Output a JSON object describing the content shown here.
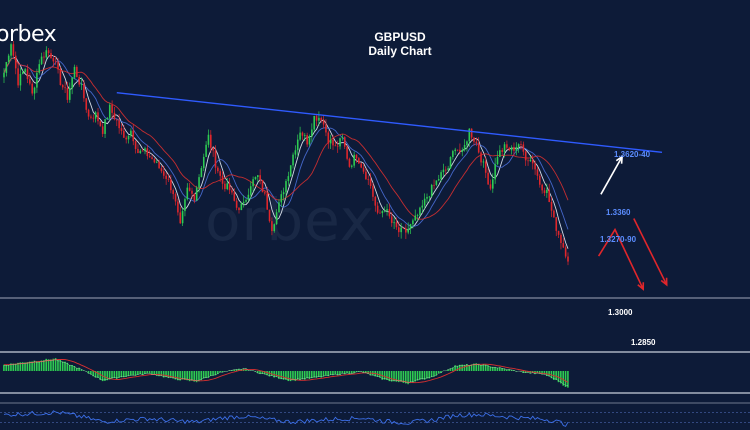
{
  "header": {
    "logo": "orbex",
    "watermark": "orbex",
    "title_line1": "GBPUSD",
    "title_line2": "Daily Chart"
  },
  "levels": {
    "resistance_top": "1.3620-40",
    "level_1": "1.3360",
    "level_2": "1.3270-90",
    "level_3": "1.3000",
    "level_4": "1.2850"
  },
  "colors": {
    "background": "#0d1b38",
    "bull_candle": "#2ecc52",
    "bear_candle": "#e0262b",
    "trendline": "#2f5bff",
    "ma_white": "#e8eef7",
    "ma_red": "#d83030",
    "ma_blue": "#4a6fd8",
    "arrow_red": "#e0262b",
    "arrow_white": "#ffffff",
    "level_label_blue": "#5b8dff"
  },
  "chart_data": {
    "type": "candlestick",
    "symbol": "GBPUSD",
    "timeframe": "Daily",
    "ylim": [
      1.27,
      1.405
    ],
    "anchors": [
      [
        0,
        1.372
      ],
      [
        3,
        1.386
      ],
      [
        6,
        1.368
      ],
      [
        9,
        1.374
      ],
      [
        12,
        1.362
      ],
      [
        15,
        1.377
      ],
      [
        18,
        1.382
      ],
      [
        21,
        1.379
      ],
      [
        24,
        1.368
      ],
      [
        27,
        1.361
      ],
      [
        30,
        1.374
      ],
      [
        33,
        1.365
      ],
      [
        36,
        1.352
      ],
      [
        39,
        1.353
      ],
      [
        42,
        1.346
      ],
      [
        45,
        1.356
      ],
      [
        48,
        1.35
      ],
      [
        51,
        1.342
      ],
      [
        54,
        1.346
      ],
      [
        57,
        1.336
      ],
      [
        60,
        1.336
      ],
      [
        63,
        1.333
      ],
      [
        66,
        1.329
      ],
      [
        69,
        1.325
      ],
      [
        72,
        1.318
      ],
      [
        75,
        1.302
      ],
      [
        78,
        1.319
      ],
      [
        81,
        1.316
      ],
      [
        84,
        1.33
      ],
      [
        87,
        1.343
      ],
      [
        90,
        1.331
      ],
      [
        93,
        1.322
      ],
      [
        96,
        1.319
      ],
      [
        99,
        1.311
      ],
      [
        102,
        1.312
      ],
      [
        105,
        1.322
      ],
      [
        108,
        1.325
      ],
      [
        111,
        1.316
      ],
      [
        114,
        1.302
      ],
      [
        117,
        1.312
      ],
      [
        120,
        1.323
      ],
      [
        123,
        1.335
      ],
      [
        126,
        1.346
      ],
      [
        129,
        1.341
      ],
      [
        132,
        1.352
      ],
      [
        135,
        1.352
      ],
      [
        138,
        1.342
      ],
      [
        141,
        1.338
      ],
      [
        144,
        1.342
      ],
      [
        147,
        1.33
      ],
      [
        150,
        1.335
      ],
      [
        153,
        1.328
      ],
      [
        156,
        1.321
      ],
      [
        159,
        1.307
      ],
      [
        162,
        1.311
      ],
      [
        165,
        1.304
      ],
      [
        168,
        1.3
      ],
      [
        171,
        1.3
      ],
      [
        174,
        1.304
      ],
      [
        177,
        1.309
      ],
      [
        180,
        1.316
      ],
      [
        183,
        1.321
      ],
      [
        186,
        1.326
      ],
      [
        189,
        1.329
      ],
      [
        192,
        1.339
      ],
      [
        195,
        1.335
      ],
      [
        198,
        1.346
      ],
      [
        201,
        1.34
      ],
      [
        204,
        1.33
      ],
      [
        207,
        1.32
      ],
      [
        210,
        1.335
      ],
      [
        213,
        1.338
      ],
      [
        216,
        1.337
      ],
      [
        219,
        1.34
      ],
      [
        222,
        1.334
      ],
      [
        225,
        1.332
      ],
      [
        228,
        1.322
      ],
      [
        231,
        1.318
      ],
      [
        234,
        1.305
      ],
      [
        237,
        1.296
      ],
      [
        240,
        1.288
      ]
    ],
    "trendline": {
      "from": [
        48,
        1.363
      ],
      "to": [
        280,
        1.336
      ]
    },
    "projections": {
      "white_up": [
        [
          254,
          1.317
        ],
        [
          263,
          1.334
        ]
      ],
      "red_zigzag": [
        [
          253,
          1.289
        ],
        [
          260,
          1.301
        ],
        [
          272,
          1.274
        ]
      ],
      "red_down": [
        [
          268,
          1.306
        ],
        [
          282,
          1.276
        ]
      ]
    },
    "macd_histogram": {
      "ylim": [
        -1,
        1
      ],
      "profile": [
        [
          0,
          0.35
        ],
        [
          12,
          0.55
        ],
        [
          22,
          0.7
        ],
        [
          32,
          0.15
        ],
        [
          42,
          -0.55
        ],
        [
          52,
          -0.3
        ],
        [
          62,
          -0.15
        ],
        [
          72,
          -0.45
        ],
        [
          82,
          -0.6
        ],
        [
          92,
          -0.1
        ],
        [
          102,
          0.15
        ],
        [
          112,
          -0.25
        ],
        [
          122,
          -0.55
        ],
        [
          132,
          -0.4
        ],
        [
          142,
          -0.2
        ],
        [
          152,
          -0.05
        ],
        [
          162,
          -0.5
        ],
        [
          172,
          -0.7
        ],
        [
          182,
          -0.35
        ],
        [
          192,
          0.3
        ],
        [
          202,
          0.4
        ],
        [
          212,
          0.15
        ],
        [
          222,
          -0.1
        ],
        [
          230,
          -0.2
        ],
        [
          236,
          -0.6
        ],
        [
          240,
          -0.95
        ]
      ]
    },
    "oscillator": {
      "ylim": [
        0,
        100
      ],
      "overbought": 70,
      "oversold": 30
    }
  }
}
